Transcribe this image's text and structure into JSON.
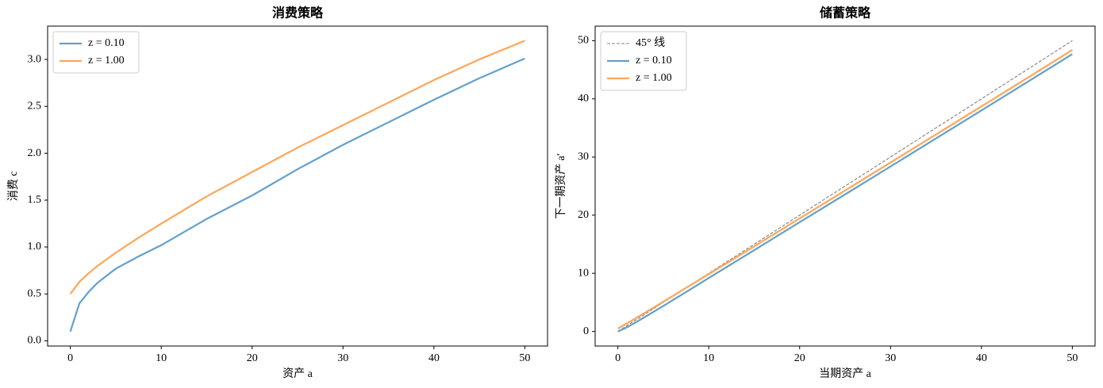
{
  "chart_data": [
    {
      "type": "line",
      "title": "消费策略",
      "xlabel": "资产 a",
      "ylabel": "消费 c",
      "x": [
        0,
        1,
        2,
        3,
        5,
        7.5,
        10,
        15,
        20,
        25,
        30,
        35,
        40,
        45,
        50
      ],
      "series": [
        {
          "name": "z = 0.10",
          "color": "#62a0cb",
          "values": [
            0.1,
            0.4,
            0.52,
            0.62,
            0.77,
            0.9,
            1.02,
            1.3,
            1.55,
            1.83,
            2.09,
            2.33,
            2.57,
            2.8,
            3.01
          ]
        },
        {
          "name": "z = 1.00",
          "color": "#ffa556",
          "values": [
            0.5,
            0.63,
            0.72,
            0.8,
            0.94,
            1.1,
            1.25,
            1.54,
            1.8,
            2.06,
            2.3,
            2.54,
            2.78,
            3.0,
            3.2
          ]
        }
      ],
      "xlim": [
        -2.5,
        52.5
      ],
      "xticks": [
        0,
        10,
        20,
        30,
        40,
        50
      ],
      "ylim": [
        -0.055,
        3.355
      ],
      "yticks": [
        {
          "value": 0,
          "label": "0.0"
        },
        0.5,
        {
          "value": 1,
          "label": "1.0"
        },
        1.5,
        {
          "value": 2,
          "label": "2.0"
        },
        2.5,
        {
          "value": 3,
          "label": "3.0"
        }
      ],
      "legend": "upper-left"
    },
    {
      "type": "line",
      "title": "储蓄策略",
      "xlabel": "当期资产 a",
      "ylabel": "下一期资产 a′",
      "x": [
        0,
        1,
        2,
        3,
        5,
        7.5,
        10,
        15,
        20,
        25,
        30,
        35,
        40,
        45,
        50
      ],
      "series": [
        {
          "name": "45° 线",
          "color": "#808080",
          "linestyle": "dashed",
          "values": [
            0,
            1,
            2,
            3,
            5,
            7.5,
            10,
            15,
            20,
            25,
            30,
            35,
            40,
            45,
            50
          ]
        },
        {
          "name": "z = 0.10",
          "color": "#62a0cb",
          "values": [
            0,
            0.71,
            1.6,
            2.52,
            4.39,
            6.79,
            9.2,
            13.98,
            18.79,
            23.57,
            28.37,
            33.19,
            38.01,
            42.84,
            47.69
          ]
        },
        {
          "name": "z = 1.00",
          "color": "#ffa556",
          "values": [
            0.5,
            1.38,
            2.3,
            3.24,
            5.12,
            7.49,
            9.87,
            14.64,
            19.44,
            24.24,
            29.06,
            33.88,
            38.7,
            43.54,
            48.4
          ]
        }
      ],
      "xlim": [
        -2.5,
        52.5
      ],
      "xticks": [
        0,
        10,
        20,
        30,
        40,
        50
      ],
      "ylim": [
        -2.5,
        52.5
      ],
      "yticks": [
        0,
        10,
        20,
        30,
        40,
        50
      ],
      "legend": "upper-left"
    }
  ]
}
